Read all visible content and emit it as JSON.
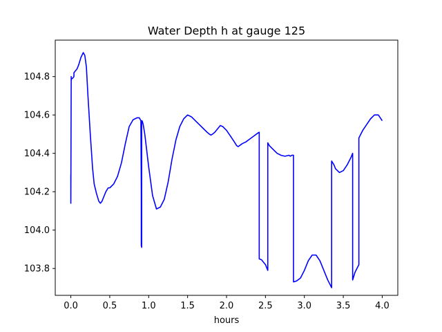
{
  "chart_data": {
    "type": "line",
    "title": "Water Depth h at gauge 125",
    "xlabel": "hours",
    "ylabel": "",
    "xlim": [
      -0.2,
      4.2
    ],
    "ylim": [
      103.66,
      104.99
    ],
    "xticks": [
      0.0,
      0.5,
      1.0,
      1.5,
      2.0,
      2.5,
      3.0,
      3.5,
      4.0
    ],
    "xtick_labels": [
      "0.0",
      "0.5",
      "1.0",
      "1.5",
      "2.0",
      "2.5",
      "3.0",
      "3.5",
      "4.0"
    ],
    "yticks": [
      103.8,
      104.0,
      104.2,
      104.4,
      104.6,
      104.8
    ],
    "ytick_labels": [
      "103.8",
      "104.0",
      "104.2",
      "104.4",
      "104.6",
      "104.8"
    ],
    "grid": false,
    "color": "#0000ff",
    "series": [
      {
        "name": "",
        "x": [
          0.0,
          0.0,
          0.005,
          0.005,
          0.01,
          0.02,
          0.04,
          0.04,
          0.06,
          0.08,
          0.1,
          0.13,
          0.16,
          0.18,
          0.2,
          0.22,
          0.25,
          0.28,
          0.3,
          0.33,
          0.36,
          0.38,
          0.4,
          0.42,
          0.45,
          0.48,
          0.5,
          0.55,
          0.6,
          0.65,
          0.7,
          0.75,
          0.8,
          0.85,
          0.88,
          0.9,
          0.905,
          0.905,
          0.91,
          0.91,
          0.915,
          0.92,
          0.93,
          0.95,
          1.0,
          1.05,
          1.1,
          1.15,
          1.2,
          1.25,
          1.3,
          1.35,
          1.4,
          1.45,
          1.5,
          1.55,
          1.6,
          1.65,
          1.7,
          1.75,
          1.78,
          1.8,
          1.82,
          1.85,
          1.88,
          1.9,
          1.92,
          1.95,
          2.0,
          2.05,
          2.1,
          2.13,
          2.15,
          2.2,
          2.25,
          2.3,
          2.35,
          2.4,
          2.42,
          2.42,
          2.45,
          2.5,
          2.53,
          2.53,
          2.55,
          2.6,
          2.65,
          2.7,
          2.75,
          2.8,
          2.82,
          2.84,
          2.86,
          2.86,
          2.9,
          2.95,
          3.0,
          3.05,
          3.1,
          3.15,
          3.2,
          3.25,
          3.3,
          3.35,
          3.35,
          3.38,
          3.4,
          3.45,
          3.5,
          3.55,
          3.6,
          3.62,
          3.62,
          3.65,
          3.7,
          3.7,
          3.75,
          3.8,
          3.85,
          3.9,
          3.95,
          4.0
        ],
        "y": [
          104.29,
          104.14,
          104.8,
          104.78,
          104.79,
          104.79,
          104.8,
          104.82,
          104.83,
          104.84,
          104.86,
          104.9,
          104.925,
          104.91,
          104.85,
          104.7,
          104.5,
          104.32,
          104.24,
          104.19,
          104.15,
          104.14,
          104.15,
          104.17,
          104.2,
          104.22,
          104.22,
          104.24,
          104.28,
          104.35,
          104.45,
          104.54,
          104.575,
          104.585,
          104.585,
          104.57,
          104.2,
          103.92,
          103.91,
          104.57,
          104.57,
          104.565,
          104.55,
          104.5,
          104.33,
          104.18,
          104.11,
          104.12,
          104.16,
          104.25,
          104.37,
          104.47,
          104.54,
          104.58,
          104.6,
          104.59,
          104.57,
          104.55,
          104.53,
          104.51,
          104.5,
          104.495,
          104.5,
          104.51,
          104.525,
          104.535,
          104.545,
          104.54,
          104.52,
          104.49,
          104.46,
          104.44,
          104.435,
          104.45,
          104.46,
          104.475,
          104.49,
          104.505,
          104.51,
          103.85,
          103.845,
          103.82,
          103.79,
          104.455,
          104.44,
          104.42,
          104.4,
          104.39,
          104.385,
          104.39,
          104.385,
          104.39,
          104.39,
          103.73,
          103.735,
          103.75,
          103.79,
          103.84,
          103.87,
          103.87,
          103.84,
          103.79,
          103.74,
          103.7,
          104.36,
          104.34,
          104.32,
          104.3,
          104.31,
          104.34,
          104.38,
          104.4,
          103.74,
          103.78,
          103.82,
          104.48,
          104.52,
          104.55,
          104.58,
          104.6,
          104.6,
          104.57
        ]
      }
    ]
  }
}
